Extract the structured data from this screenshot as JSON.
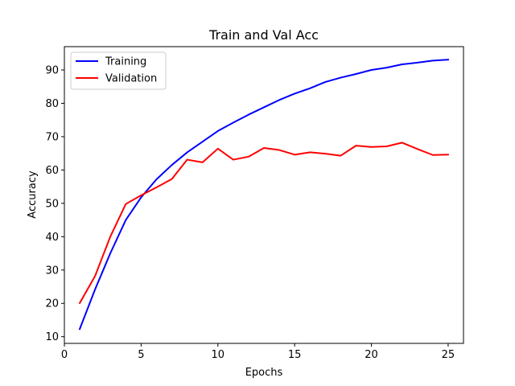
{
  "chart_data": {
    "type": "line",
    "title": "Train and Val Acc",
    "xlabel": "Epochs",
    "ylabel": "Accuracy",
    "xlim": [
      0,
      26
    ],
    "ylim": [
      8,
      97
    ],
    "xticks": [
      0,
      5,
      10,
      15,
      20,
      25
    ],
    "yticks": [
      10,
      20,
      30,
      40,
      50,
      60,
      70,
      80,
      90
    ],
    "grid": false,
    "legend_position": "top-left",
    "x": [
      1,
      2,
      3,
      4,
      5,
      6,
      7,
      8,
      9,
      10,
      11,
      12,
      13,
      14,
      15,
      16,
      17,
      18,
      19,
      20,
      21,
      22,
      23,
      24,
      25
    ],
    "series": [
      {
        "name": "Training",
        "color": "#0000ff",
        "values": [
          12.3,
          24.2,
          35.1,
          45.0,
          51.8,
          57.2,
          61.5,
          65.3,
          68.5,
          71.7,
          74.2,
          76.6,
          78.8,
          81.0,
          82.9,
          84.5,
          86.4,
          87.7,
          88.8,
          90.0,
          90.7,
          91.7,
          92.2,
          92.8,
          93.1
        ]
      },
      {
        "name": "Validation",
        "color": "#ff0000",
        "values": [
          20.1,
          28.2,
          40.1,
          49.8,
          52.4,
          54.8,
          57.3,
          63.1,
          62.3,
          66.4,
          63.1,
          64.0,
          66.6,
          66.0,
          64.6,
          65.3,
          64.9,
          64.3,
          67.3,
          66.9,
          67.1,
          68.2,
          66.3,
          64.5,
          64.6
        ]
      }
    ]
  }
}
